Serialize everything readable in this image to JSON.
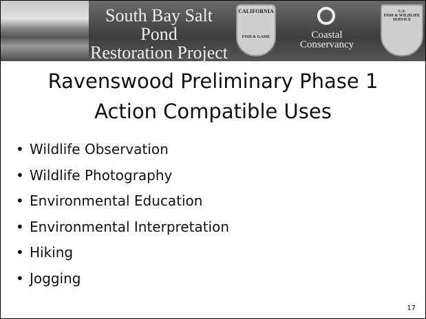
{
  "header": {
    "title_lines": [
      "South Bay Salt Pond",
      "Restoration Project"
    ],
    "logos": {
      "fish_game": [
        "CALIFORNIA",
        "FISH & GAME"
      ],
      "conservancy": [
        "Coastal",
        "Conservancy"
      ],
      "fws": [
        "U.S.",
        "FISH & WILDLIFE",
        "SERVICE"
      ]
    }
  },
  "slide": {
    "title_lines": [
      "Ravenswood Preliminary Phase 1",
      "Action Compatible Uses"
    ],
    "bullets": [
      "Wildlife Observation",
      "Wildlife Photography",
      "Environmental Education",
      "Environmental Interpretation",
      "Hiking",
      "Jogging"
    ],
    "page_number": "17"
  }
}
